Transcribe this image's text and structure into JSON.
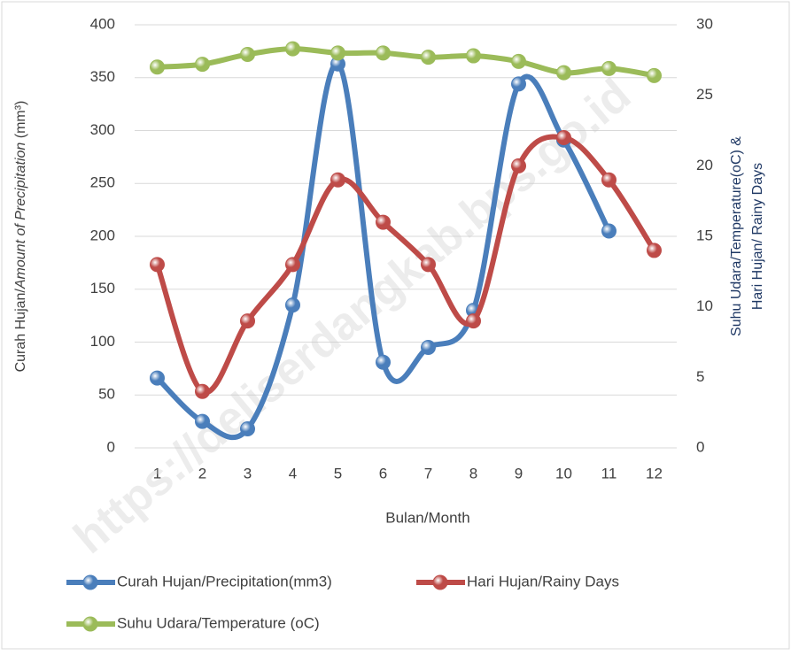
{
  "chart_data": {
    "type": "line",
    "watermark": "https://deliserdangkab.bps.go.id",
    "xlabel": "Bulan/Month",
    "ylabel": [
      "Curah Hujan/",
      "Amount of Precipitation",
      " (mm³)"
    ],
    "y2label": [
      "Suhu Udara/Temperature(oC) &",
      "Hari Hujan/ Rainy Days"
    ],
    "categories": [
      "1",
      "2",
      "3",
      "4",
      "5",
      "6",
      "7",
      "8",
      "9",
      "10",
      "11",
      "12"
    ],
    "series": [
      {
        "name": "Curah Hujan/Precipitation(mm3)",
        "color": "#4a7ebb",
        "values": [
          66,
          25,
          18,
          135,
          363,
          81,
          95,
          130,
          344,
          291,
          205,
          null
        ]
      },
      {
        "name": "Hari Hujan/Rainy Days",
        "color": "#be4b48",
        "axis": "y2",
        "values": [
          13,
          4,
          9,
          13,
          19,
          16,
          13,
          9,
          20,
          22,
          19,
          14
        ]
      },
      {
        "name": "Suhu Udara/Temperature (oC)",
        "color": "#9bbb59",
        "axis": "y2",
        "values": [
          27,
          27.2,
          27.9,
          28.3,
          28,
          28,
          27.7,
          27.8,
          27.4,
          26.6,
          26.9,
          26.4
        ]
      }
    ],
    "ylim": [
      0,
      400
    ],
    "yticks": [
      0,
      50,
      100,
      150,
      200,
      250,
      300,
      350,
      400
    ],
    "y2lim": [
      0,
      30
    ],
    "y2ticks": [
      0,
      5,
      10,
      15,
      20,
      25,
      30
    ],
    "grid": true,
    "legend": "bottom"
  }
}
